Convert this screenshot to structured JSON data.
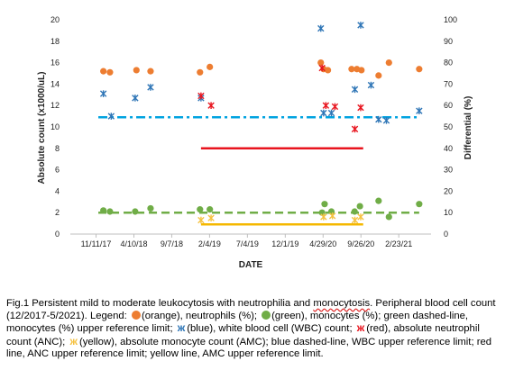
{
  "chart_data": {
    "type": "scatter",
    "title": "",
    "xlabel": "DATE",
    "ylabel_left": "Absolute count (x1000/uL)",
    "ylabel_right": "Differential (%)",
    "xlim": [
      "2017-08-01",
      "2021-07-01"
    ],
    "x_ticks": [
      "11/11/17",
      "4/10/18",
      "9/7/18",
      "2/4/19",
      "7/4/19",
      "12/1/19",
      "4/29/20",
      "9/26/20",
      "2/23/21"
    ],
    "x_tick_dates": [
      "2017-11-11",
      "2018-04-10",
      "2018-09-07",
      "2019-02-04",
      "2019-07-04",
      "2019-12-01",
      "2020-04-29",
      "2020-09-26",
      "2021-02-23"
    ],
    "ylim_left": [
      0,
      20
    ],
    "y_ticks_left": [
      0,
      2,
      4,
      6,
      8,
      10,
      12,
      14,
      16,
      18,
      20
    ],
    "ylim_right": [
      0,
      100
    ],
    "y_ticks_right": [
      0,
      10,
      20,
      30,
      40,
      50,
      60,
      70,
      80,
      90,
      100
    ],
    "grid": false,
    "legend": "none",
    "series": [
      {
        "name": "neutrophils (%)",
        "axis": "right",
        "marker": "circle",
        "color": "#ed7d31",
        "x": [
          "2017-12-10",
          "2018-01-05",
          "2018-04-20",
          "2018-06-15",
          "2018-12-28",
          "2019-02-05",
          "2020-04-20",
          "2020-05-01",
          "2020-05-18",
          "2020-08-20",
          "2020-09-10",
          "2020-09-28",
          "2020-12-05",
          "2021-01-15",
          "2021-05-15"
        ],
        "y": [
          76,
          75.5,
          76.5,
          76,
          75.5,
          78,
          80,
          77,
          76.5,
          77,
          77,
          76.5,
          74,
          80,
          77
        ]
      },
      {
        "name": "monocytes (%)",
        "axis": "right",
        "marker": "circle",
        "color": "#70ad47",
        "x": [
          "2017-12-10",
          "2018-01-05",
          "2018-04-15",
          "2018-06-15",
          "2018-12-28",
          "2019-02-05",
          "2020-04-25",
          "2020-05-05",
          "2020-06-01",
          "2020-09-01",
          "2020-09-22",
          "2020-12-05",
          "2021-01-15",
          "2021-05-15"
        ],
        "y": [
          11,
          10.5,
          10.5,
          12,
          11.5,
          11.5,
          10,
          14,
          10.5,
          10.5,
          13,
          15.5,
          8,
          14
        ]
      },
      {
        "name": "white blood cell (WBC) count",
        "axis": "left",
        "marker": "asterisk",
        "color": "#2e75b6",
        "x": [
          "2017-12-10",
          "2018-01-10",
          "2018-04-15",
          "2018-06-15",
          "2019-01-01",
          "2020-04-20",
          "2020-05-01",
          "2020-06-01",
          "2020-09-02",
          "2020-09-25",
          "2020-11-05",
          "2020-12-05",
          "2021-01-05",
          "2021-05-15"
        ],
        "y": [
          13.1,
          11.0,
          12.7,
          13.7,
          12.7,
          19.2,
          11.3,
          11.3,
          13.5,
          19.5,
          13.9,
          10.7,
          10.6,
          11.5
        ]
      },
      {
        "name": "absolute neutrophil count (ANC)",
        "axis": "left",
        "marker": "asterisk",
        "color": "#e8141e",
        "x": [
          "2019-01-01",
          "2019-02-10",
          "2020-04-25",
          "2020-05-10",
          "2020-06-15",
          "2020-09-02",
          "2020-09-25"
        ],
        "y": [
          12.9,
          12.0,
          15.5,
          12.0,
          11.9,
          9.8,
          11.8
        ]
      },
      {
        "name": "absolute monocyte count (AMC)",
        "axis": "left",
        "marker": "asterisk",
        "color": "#f5c242",
        "x": [
          "2019-01-01",
          "2019-02-10",
          "2020-05-01",
          "2020-06-05",
          "2020-09-02",
          "2020-09-25"
        ],
        "y": [
          1.3,
          1.5,
          1.6,
          1.7,
          1.3,
          1.6
        ]
      }
    ],
    "reference_lines": [
      {
        "name": "monocytes (%) upper reference limit",
        "color": "#70ad47",
        "style": "dashed",
        "axis": "right",
        "value": 10,
        "x": [
          "2017-11-20",
          "2021-05-15"
        ]
      },
      {
        "name": "WBC upper reference limit",
        "color": "#00a3e0",
        "style": "dashdot",
        "axis": "left",
        "value": 10.9,
        "x": [
          "2017-11-20",
          "2021-05-15"
        ]
      },
      {
        "name": "ANC upper reference limit",
        "color": "#e8141e",
        "style": "solid",
        "axis": "left",
        "value": 8.0,
        "x": [
          "2019-01-01",
          "2020-10-05"
        ]
      },
      {
        "name": "AMC upper reference limit",
        "color": "#f5b800",
        "style": "solid",
        "axis": "left",
        "value": 0.9,
        "x": [
          "2019-01-01",
          "2020-10-05"
        ]
      }
    ]
  },
  "caption": {
    "p1": "Fig.1 Persistent mild to moderate leukocytosis with neutrophilia and ",
    "p1_wavy": "monocytosis",
    "p2": ". Peripheral blood cell count (12/2017-5/2021). Legend: ",
    "p3": "(orange), neutrophils (%); ",
    "p4": "(green), monocytes (%); green dashed-line, monocytes (%) upper reference limit; ",
    "glyph_blue": "ж",
    "p5": "(blue), white blood cell (WBC) count; ",
    "glyph_red": "ж",
    "p6": "(red), absolute neutrophil count (ANC); ",
    "glyph_yellow": "ж",
    "p7": "(yellow), absolute monocyte count (AMC); blue dashed-line, WBC upper reference limit; red line, ANC upper reference limit; yellow line, AMC upper reference limit.",
    "orange_color": "#ed7d31",
    "green_color": "#70ad47",
    "blue_color": "#2e75b6",
    "red_color": "#e8141e",
    "yellow_color": "#f5c242"
  }
}
